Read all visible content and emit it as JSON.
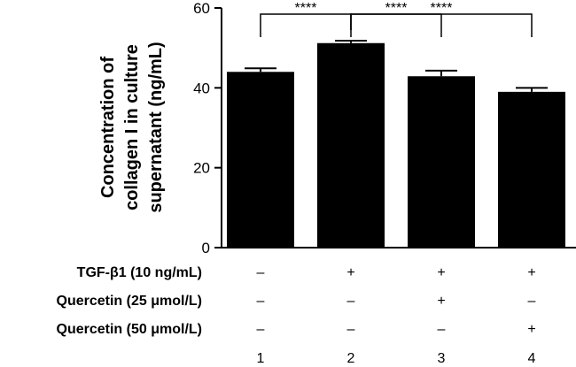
{
  "chart_data": {
    "type": "bar",
    "categories": [
      "1",
      "2",
      "3",
      "4"
    ],
    "values": [
      44.0,
      51.2,
      42.9,
      39.0
    ],
    "errors": [
      0.9,
      0.6,
      1.4,
      1.0
    ],
    "ylabel_lines": [
      "Concentration of",
      "collagen I in culture",
      "supernatant (ng/mL)"
    ],
    "ylim": [
      0,
      60
    ],
    "yticks": [
      0,
      20,
      40,
      60
    ],
    "bar_color": "#000000",
    "grid": false,
    "treatment_rows": [
      {
        "label": "TGF-β1 (10 ng/mL)",
        "marks": [
          "–",
          "+",
          "+",
          "+"
        ]
      },
      {
        "label": "Quercetin (25 μmol/L)",
        "marks": [
          "–",
          "–",
          "+",
          "–"
        ]
      },
      {
        "label": "Quercetin (50 μmol/L)",
        "marks": [
          "–",
          "–",
          "–",
          "+"
        ]
      }
    ],
    "significance": [
      {
        "from": 0,
        "to": 1,
        "label": "****"
      },
      {
        "from": 1,
        "to": 2,
        "label": "****"
      },
      {
        "from": 1,
        "to": 3,
        "label": "****"
      }
    ]
  }
}
